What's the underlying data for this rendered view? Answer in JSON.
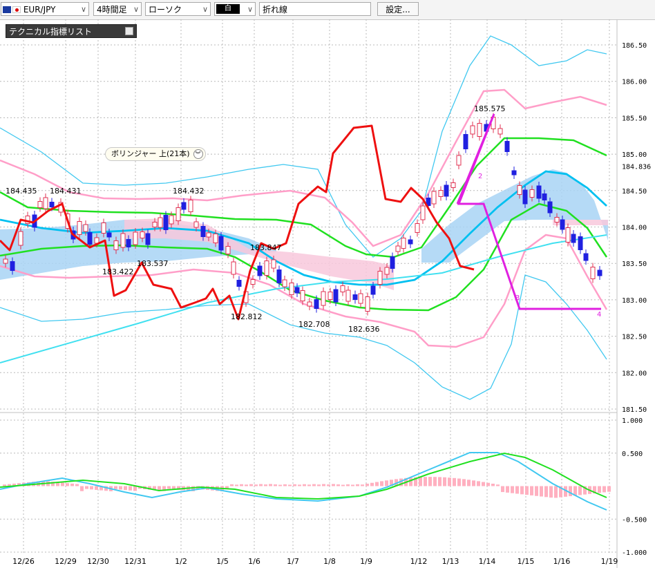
{
  "toolbar": {
    "symbol": "EUR/JPY",
    "timeframe": "4時間足",
    "chart_style": "ローソク",
    "color_mode": "白",
    "line_type": "折れ線",
    "settings": "設定..."
  },
  "indicator_panel": {
    "title": "テクニカル指標リスト"
  },
  "bb_label": "ボリンジャー 上(21本)",
  "colors": {
    "up": "#e03050",
    "down": "#2020e0",
    "bb_outer": "#40c8f0",
    "bb_2": "#ff9ec8",
    "bb_1": "#20e020",
    "ma": "#00c0f0",
    "long_ma": "#40e0f0",
    "zigzag_red": "#ee1010",
    "zigzag_magenta": "#e020e0",
    "cloud_blue": "#a8d4f4",
    "cloud_pink": "#f8c8dc"
  },
  "chart_data": [
    {
      "type": "candlestick",
      "instrument": "EUR/JPY",
      "y_ticks": [
        "186.50",
        "186.00",
        "185.50",
        "185.00",
        "184.50",
        "184.00",
        "183.50",
        "183.00",
        "182.50",
        "182.00",
        "181.50"
      ],
      "ylim": [
        181.5,
        186.5
      ],
      "last_price_label": "184.836",
      "x_labels": [
        "12/26",
        "12/29",
        "12/30",
        "12/31",
        "1/2",
        "1/5",
        "1/6",
        "1/7",
        "1/8",
        "1/9",
        "1/12",
        "1/13",
        "1/14",
        "1/15",
        "1/16",
        "1/19"
      ],
      "annotations": [
        {
          "text": "184.435",
          "x": 0,
          "price": 184.435
        },
        {
          "text": "184.431",
          "x": 1,
          "price": 184.431
        },
        {
          "text": "184.432",
          "x": 4,
          "price": 184.432
        },
        {
          "text": "183.422",
          "x": 2,
          "price": 183.422
        },
        {
          "text": "183.537",
          "x": 3,
          "price": 183.537
        },
        {
          "text": "183.847",
          "x": 6,
          "price": 183.847
        },
        {
          "text": "182.812",
          "x": 5,
          "price": 182.812
        },
        {
          "text": "182.708",
          "x": 8,
          "price": 182.708
        },
        {
          "text": "182.636",
          "x": 9,
          "price": 182.636
        },
        {
          "text": "185.575",
          "x": 12,
          "price": 185.575
        }
      ],
      "zigzag_labels": [
        "2",
        "3",
        "4"
      ]
    },
    {
      "type": "line",
      "name": "oscillator",
      "y_ticks": [
        "1.000",
        "0.500",
        "-0.500",
        "-1.000"
      ],
      "ylim": [
        -1.0,
        1.0
      ]
    }
  ]
}
